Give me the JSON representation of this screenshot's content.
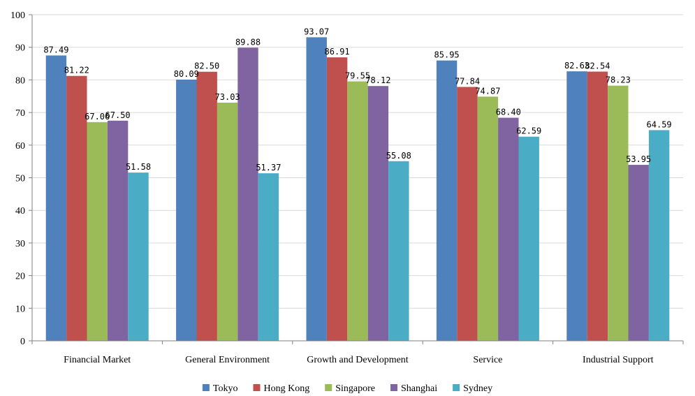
{
  "chart_data": {
    "type": "bar",
    "categories": [
      "Financial Market",
      "General Environment",
      "Growth and Development",
      "Service",
      "Industrial Support"
    ],
    "series": [
      {
        "name": "Tokyo",
        "color": "#4F81BD",
        "values": [
          87.49,
          80.09,
          93.07,
          85.95,
          82.63
        ]
      },
      {
        "name": "Hong Kong",
        "color": "#C0504D",
        "values": [
          81.22,
          82.5,
          86.91,
          77.84,
          82.54
        ]
      },
      {
        "name": "Singapore",
        "color": "#9BBB59",
        "values": [
          67.06,
          73.03,
          79.55,
          74.87,
          78.23
        ]
      },
      {
        "name": "Shanghai",
        "color": "#8064A2",
        "values": [
          67.5,
          89.88,
          78.12,
          68.4,
          53.95
        ]
      },
      {
        "name": "Sydney",
        "color": "#4BACC6",
        "values": [
          51.58,
          51.37,
          55.08,
          62.59,
          64.59
        ]
      }
    ],
    "labels": [
      [
        "87.49",
        "81.22",
        "67.06",
        "67.50",
        "51.58"
      ],
      [
        "80.09",
        "82.50",
        "73.03",
        "89.88",
        "51.37"
      ],
      [
        "93.07",
        "86.91",
        "79.55",
        "78.12",
        "55.08"
      ],
      [
        "85.95",
        "77.84",
        "74.87",
        "68.40",
        "62.59"
      ],
      [
        "82.63",
        "82.54",
        "78.23",
        "53.95",
        "64.59"
      ]
    ],
    "yticks": [
      "0",
      "10",
      "20",
      "30",
      "40",
      "50",
      "60",
      "70",
      "80",
      "90",
      "100"
    ],
    "ylim": [
      0,
      100
    ],
    "title": "",
    "xlabel": "",
    "ylabel": "",
    "grid": true,
    "legend_position": "bottom"
  }
}
